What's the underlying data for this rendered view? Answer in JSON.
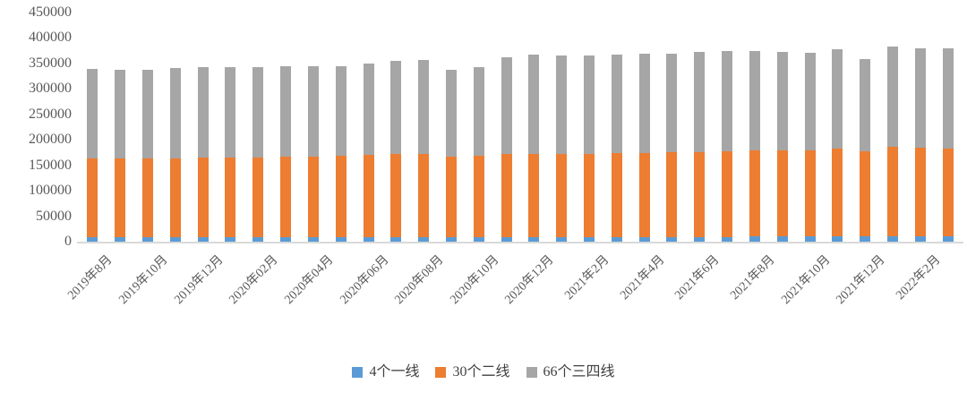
{
  "chart_data": {
    "type": "bar",
    "stacked": true,
    "title": "",
    "xlabel": "",
    "ylabel": "",
    "grid": false,
    "legend_position": "bottom",
    "ylim": [
      0,
      450000
    ],
    "y_ticks": [
      "450000",
      "400000",
      "350000",
      "300000",
      "250000",
      "200000",
      "150000",
      "100000",
      "50000",
      "0"
    ],
    "categories": [
      "2019年8月",
      "2019年9月",
      "2019年10月",
      "2019年11月",
      "2019年12月",
      "2020年01月",
      "2020年02月",
      "2020年03月",
      "2020年04月",
      "2020年05月",
      "2020年06月",
      "2020年07月",
      "2020年08月",
      "2020年09月",
      "2020年10月",
      "2020年11月",
      "2020年12月",
      "2021年1月",
      "2021年2月",
      "2021年3月",
      "2021年4月",
      "2021年5月",
      "2021年6月",
      "2021年7月",
      "2021年8月",
      "2021年9月",
      "2021年10月",
      "2021年11月",
      "2021年12月",
      "2022年1月",
      "2022年2月",
      "2022年3月"
    ],
    "x_tick_labels_visible": [
      "2019年8月",
      "2019年10月",
      "2019年12月",
      "2020年02月",
      "2020年04月",
      "2020年06月",
      "2020年08月",
      "2020年10月",
      "2020年12月",
      "2021年2月",
      "2021年4月",
      "2021年6月",
      "2021年8月",
      "2021年10月",
      "2021年12月",
      "2022年2月"
    ],
    "x_tick_step": 2,
    "series": [
      {
        "name": "4个一线",
        "color": "#5B9BD5",
        "values": [
          8000,
          8000,
          8000,
          8000,
          8000,
          8500,
          8500,
          8500,
          8500,
          8500,
          9000,
          9000,
          9000,
          9000,
          9000,
          9000,
          9000,
          9500,
          9500,
          9500,
          9500,
          9500,
          9500,
          9500,
          10500,
          10500,
          10500,
          10500,
          10500,
          11000,
          11000,
          11000
        ]
      },
      {
        "name": "30个二线",
        "color": "#ED7D31",
        "values": [
          156000,
          155000,
          155000,
          156000,
          157000,
          156500,
          157000,
          158000,
          159000,
          160000,
          161500,
          162500,
          162500,
          157500,
          160000,
          163000,
          164000,
          163000,
          163000,
          164000,
          165000,
          166000,
          167000,
          168000,
          168000,
          168500,
          169500,
          172500,
          167000,
          175000,
          173500,
          172000
        ]
      },
      {
        "name": "66个三四线",
        "color": "#A6A6A6",
        "values": [
          175000,
          175000,
          175000,
          177000,
          177000,
          177000,
          176500,
          177500,
          177500,
          176000,
          180000,
          184500,
          185500,
          171500,
          174000,
          190000,
          194000,
          193500,
          193500,
          194000,
          194500,
          194500,
          195500,
          196500,
          195500,
          193000,
          190500,
          195000,
          182000,
          198000,
          194500,
          197000
        ]
      }
    ],
    "colors": {
      "axis_text": "#595959",
      "axis_line": "#D9D9D9",
      "background": "#FFFFFF"
    }
  }
}
